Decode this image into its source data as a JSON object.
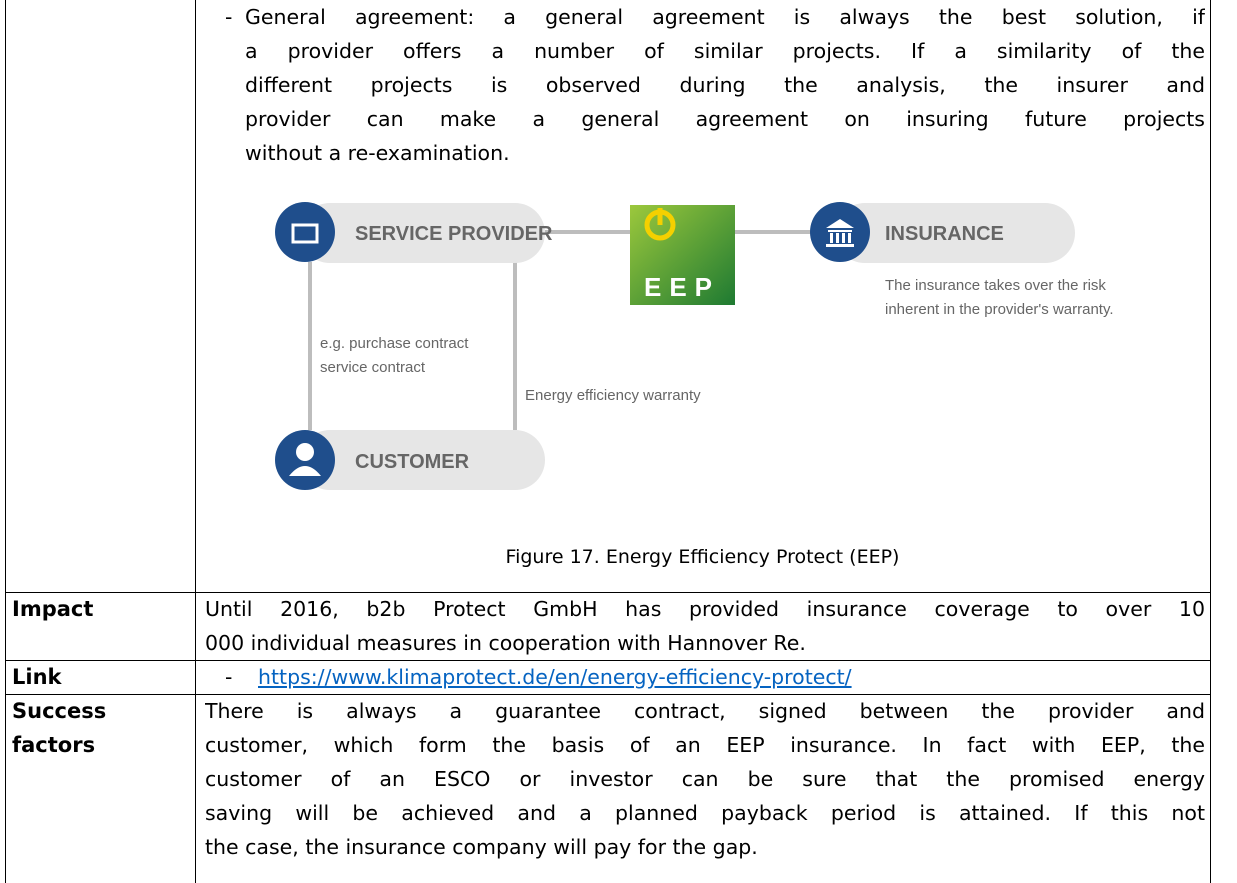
{
  "table": {
    "rows": [
      {
        "label": null,
        "bullet": "-",
        "lines": [
          "General agreement: a general agreement is always the best solution, if",
          "a provider offers a number of similar projects. If a similarity of the",
          "different projects is observed during the analysis, the insurer and",
          "provider can make a general agreement on insuring future projects",
          "without a re-examination."
        ],
        "figure": {
          "nodes": {
            "service_provider": "SERVICE PROVIDER",
            "insurance": "INSURANCE",
            "customer": "CUSTOMER",
            "eep": "EEP"
          },
          "annotations": {
            "contract": [
              "e.g. purchase contract",
              "service contract"
            ],
            "warranty": "Energy efficiency warranty",
            "insurance_note": [
              "The insurance takes over the risk",
              "inherent in the provider's warranty."
            ]
          },
          "caption": "Figure 17. Energy Efficiency Protect (EEP)"
        }
      },
      {
        "label": "Impact",
        "lines": [
          "Until 2016, b2b Protect GmbH has provided insurance coverage to over 10",
          "000 individual measures in cooperation with Hannover Re."
        ]
      },
      {
        "label": "Link",
        "bullet": "-",
        "link": "https://www.klimaprotect.de/en/energy-efficiency-protect/"
      },
      {
        "label": [
          "Success",
          "factors"
        ],
        "lines": [
          "There is always a guarantee contract, signed between the provider and",
          "customer, which form the basis of an EEP insurance. In fact with EEP, the",
          "customer of an ESCO or investor can be sure that the promised energy",
          "saving will be achieved and a planned payback period is attained. If this not",
          "the case, the insurance company will pay for the gap."
        ]
      }
    ]
  }
}
